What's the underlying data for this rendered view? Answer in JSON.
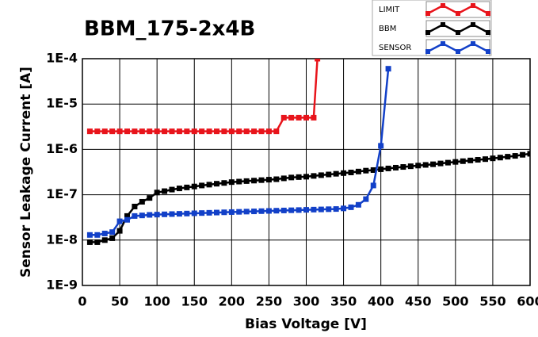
{
  "chart_data": {
    "type": "line",
    "title": "BBM_175-2x4B",
    "x_label": "Bias Voltage [V]",
    "y_label": "Sensor Leakage Current [A]",
    "xlim": [
      0,
      600
    ],
    "xticks": [
      0,
      50,
      100,
      150,
      200,
      250,
      300,
      350,
      400,
      450,
      500,
      550,
      600
    ],
    "ylim": [
      1e-09,
      0.0001
    ],
    "log_y": true,
    "grid": true,
    "yticks": [
      {
        "value": 1e-09,
        "label": "1E-9"
      },
      {
        "value": 1e-08,
        "label": "1E-8"
      },
      {
        "value": 1e-07,
        "label": "1E-7"
      },
      {
        "value": 1e-06,
        "label": "1E-6"
      },
      {
        "value": 1e-05,
        "label": "1E-5"
      },
      {
        "value": 0.0001,
        "label": "1E-4"
      }
    ],
    "series": [
      {
        "name": "LIMIT",
        "color": "#e8141b",
        "x": [
          10,
          20,
          30,
          40,
          50,
          60,
          70,
          80,
          90,
          100,
          110,
          120,
          130,
          140,
          150,
          160,
          170,
          180,
          190,
          200,
          210,
          220,
          230,
          240,
          250,
          260,
          270,
          280,
          290,
          300,
          310,
          315
        ],
        "values": [
          2.5e-06,
          2.5e-06,
          2.5e-06,
          2.5e-06,
          2.5e-06,
          2.5e-06,
          2.5e-06,
          2.5e-06,
          2.5e-06,
          2.5e-06,
          2.5e-06,
          2.5e-06,
          2.5e-06,
          2.5e-06,
          2.5e-06,
          2.5e-06,
          2.5e-06,
          2.5e-06,
          2.5e-06,
          2.5e-06,
          2.5e-06,
          2.5e-06,
          2.5e-06,
          2.5e-06,
          2.5e-06,
          2.5e-06,
          5e-06,
          5e-06,
          5e-06,
          5e-06,
          5e-06,
          0.0001
        ]
      },
      {
        "name": "BBM",
        "color": "#000000",
        "x": [
          10,
          20,
          30,
          40,
          50,
          60,
          70,
          80,
          90,
          100,
          110,
          120,
          130,
          140,
          150,
          160,
          170,
          180,
          190,
          200,
          210,
          220,
          230,
          240,
          250,
          260,
          270,
          280,
          290,
          300,
          310,
          320,
          330,
          340,
          350,
          360,
          370,
          380,
          390,
          400,
          410,
          420,
          430,
          440,
          450,
          460,
          470,
          480,
          490,
          500,
          510,
          520,
          530,
          540,
          550,
          560,
          570,
          580,
          590,
          600
        ],
        "values": [
          9e-09,
          9e-09,
          1e-08,
          1.1e-08,
          1.6e-08,
          3.4e-08,
          5.5e-08,
          7e-08,
          8.5e-08,
          1.12e-07,
          1.2e-07,
          1.3e-07,
          1.38e-07,
          1.45e-07,
          1.52e-07,
          1.6e-07,
          1.67e-07,
          1.75e-07,
          1.82e-07,
          1.9e-07,
          1.95e-07,
          2e-07,
          2.05e-07,
          2.1e-07,
          2.15e-07,
          2.2e-07,
          2.3e-07,
          2.4e-07,
          2.45e-07,
          2.5e-07,
          2.6e-07,
          2.7e-07,
          2.8e-07,
          2.9e-07,
          3e-07,
          3.1e-07,
          3.25e-07,
          3.4e-07,
          3.5e-07,
          3.65e-07,
          3.8e-07,
          3.95e-07,
          4.1e-07,
          4.25e-07,
          4.4e-07,
          4.55e-07,
          4.7e-07,
          4.9e-07,
          5.1e-07,
          5.3e-07,
          5.5e-07,
          5.7e-07,
          5.9e-07,
          6.1e-07,
          6.35e-07,
          6.6e-07,
          6.9e-07,
          7.2e-07,
          7.6e-07,
          8e-07
        ]
      },
      {
        "name": "SENSOR",
        "color": "#1240c8",
        "x": [
          10,
          20,
          30,
          40,
          50,
          60,
          70,
          80,
          90,
          100,
          110,
          120,
          130,
          140,
          150,
          160,
          170,
          180,
          190,
          200,
          210,
          220,
          230,
          240,
          250,
          260,
          270,
          280,
          290,
          300,
          310,
          320,
          330,
          340,
          350,
          360,
          370,
          380,
          390,
          400,
          410
        ],
        "values": [
          1.3e-08,
          1.3e-08,
          1.4e-08,
          1.5e-08,
          2.6e-08,
          2.8e-08,
          3.4e-08,
          3.5e-08,
          3.6e-08,
          3.65e-08,
          3.7e-08,
          3.75e-08,
          3.8e-08,
          3.85e-08,
          3.9e-08,
          3.95e-08,
          4e-08,
          4.05e-08,
          4.1e-08,
          4.15e-08,
          4.2e-08,
          4.25e-08,
          4.3e-08,
          4.35e-08,
          4.4e-08,
          4.45e-08,
          4.5e-08,
          4.55e-08,
          4.6e-08,
          4.65e-08,
          4.7e-08,
          4.75e-08,
          4.8e-08,
          4.85e-08,
          5e-08,
          5.3e-08,
          6e-08,
          8e-08,
          1.6e-07,
          1.2e-06,
          6e-05
        ]
      }
    ]
  }
}
